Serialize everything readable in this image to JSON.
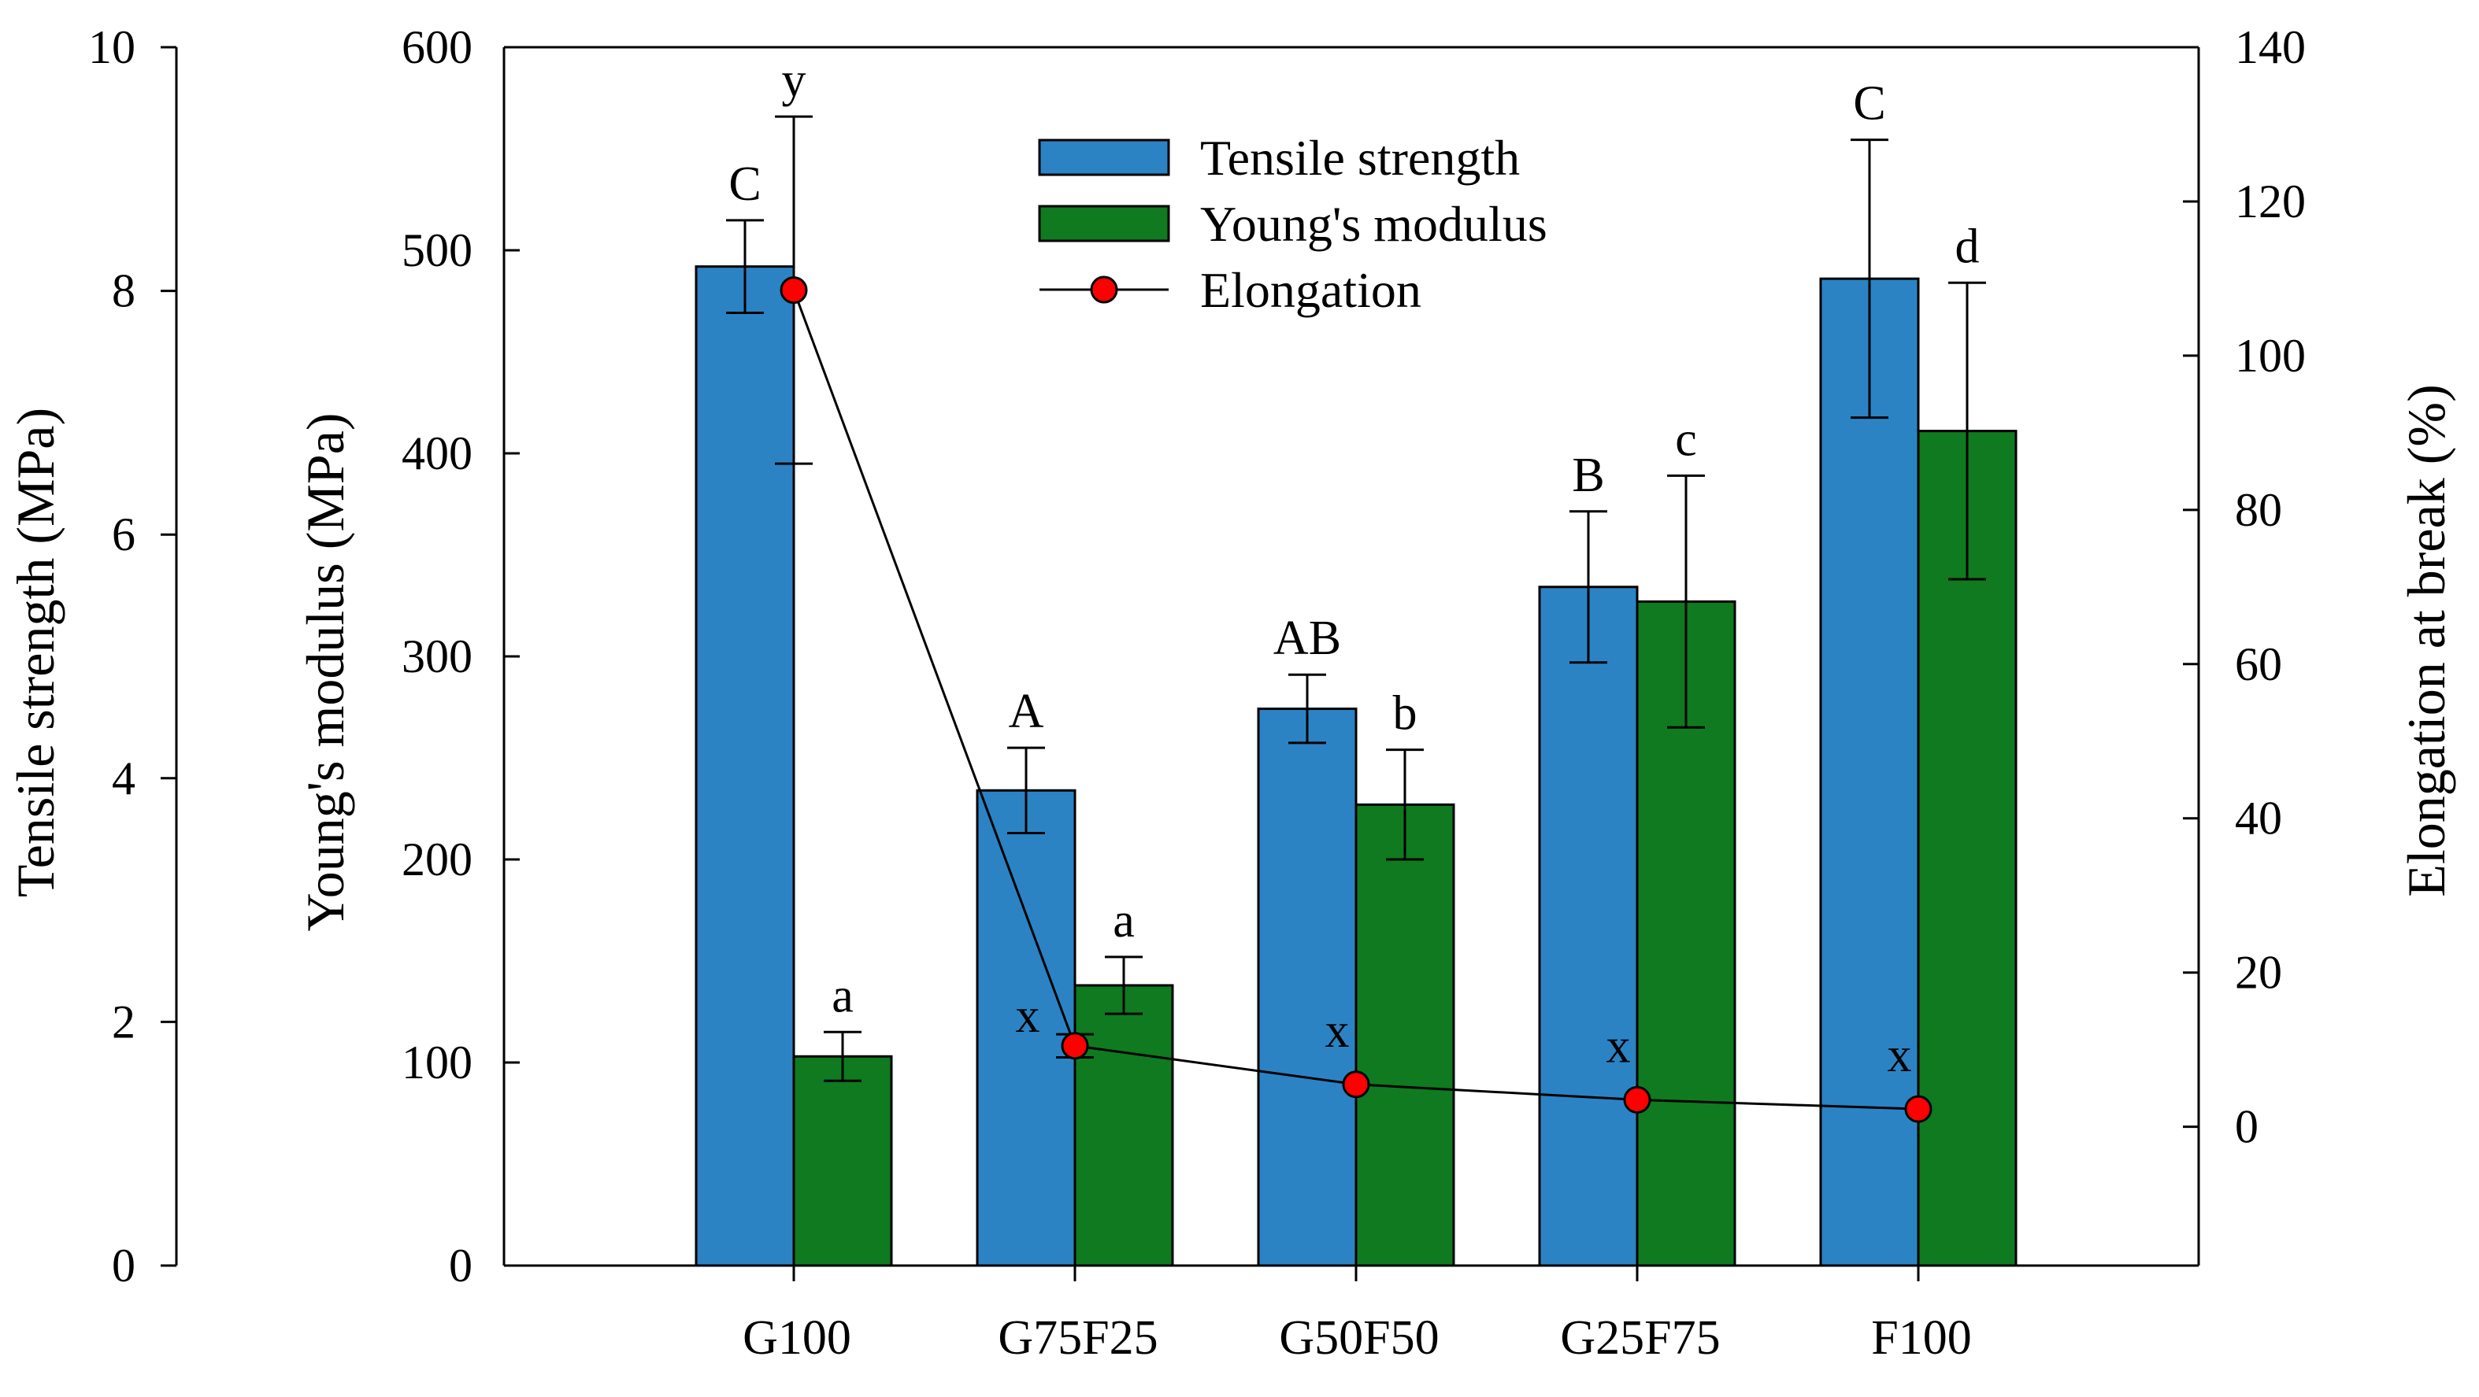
{
  "chart_data": {
    "type": "bar",
    "categories": [
      "G100",
      "G75F25",
      "G50F50",
      "G25F75",
      "F100"
    ],
    "axes": {
      "tensile": {
        "label": "Tensile strength (MPa)",
        "range": [
          0,
          10
        ],
        "ticks": [
          0,
          2,
          4,
          6,
          8,
          10
        ],
        "tick_labels": [
          "0",
          "2",
          "4",
          "6",
          "8",
          "10"
        ]
      },
      "modulus": {
        "label": "Young's modulus (MPa)",
        "range": [
          0,
          600
        ],
        "ticks": [
          0,
          100,
          200,
          300,
          400,
          500,
          600
        ],
        "tick_labels": [
          "0",
          "100",
          "200",
          "300",
          "400",
          "500",
          "600"
        ]
      },
      "elongation": {
        "label": "Elongation at break (%)",
        "range": [
          -18,
          140
        ],
        "ticks": [
          0,
          20,
          40,
          60,
          80,
          100,
          120,
          140
        ],
        "tick_labels": [
          "0",
          "20",
          "40",
          "60",
          "80",
          "100",
          "120",
          "140"
        ]
      }
    },
    "series": [
      {
        "name": "Tensile strength",
        "axis": "tensile",
        "color": "#2b83c4",
        "values": [
          8.2,
          3.9,
          4.57,
          5.57,
          8.1
        ],
        "errors": [
          0.38,
          0.35,
          0.28,
          0.62,
          1.14
        ],
        "letters": [
          "C",
          "A",
          "AB",
          "B",
          "C"
        ]
      },
      {
        "name": "Young's modulus",
        "axis": "modulus",
        "color": "#0f7a1f",
        "values": [
          103,
          138,
          227,
          327,
          411
        ],
        "errors": [
          12,
          14,
          27,
          62,
          73
        ],
        "letters": [
          "a",
          "a",
          "b",
          "c",
          "d"
        ]
      },
      {
        "name": "Elongation",
        "axis": "elongation",
        "color": "#ff0000",
        "values": [
          108.5,
          10.5,
          5.5,
          3.5,
          2.3
        ],
        "errors": [
          22.5,
          1.5,
          0,
          0,
          0
        ],
        "letters": [
          "y",
          "x",
          "x",
          "x",
          "x"
        ]
      }
    ],
    "legend": {
      "placement": "top-center"
    }
  }
}
